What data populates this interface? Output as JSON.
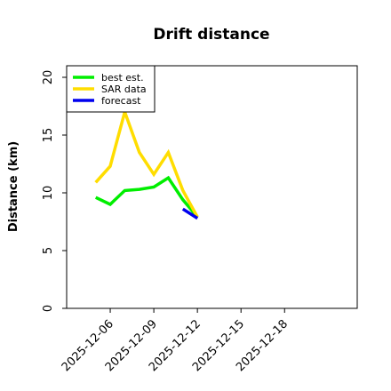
{
  "chart_data": {
    "type": "line",
    "title": "Drift distance",
    "xlabel": "",
    "ylabel": "Distance (km)",
    "ylim": [
      0,
      21
    ],
    "xlim": [
      "2025-12-03",
      "2025-12-23"
    ],
    "yticks": [
      "0",
      "5",
      "10",
      "15",
      "20"
    ],
    "xticks": [
      "2025-12-06",
      "2025-12-09",
      "2025-12-12",
      "2025-12-15",
      "2025-12-18"
    ],
    "grid": false,
    "legend_position": "top-left",
    "series": [
      {
        "name": "best est.",
        "color": "#00ee00",
        "x": [
          "2025-12-05",
          "2025-12-06",
          "2025-12-07",
          "2025-12-08",
          "2025-12-09",
          "2025-12-10",
          "2025-12-11",
          "2025-12-12"
        ],
        "y": [
          9.6,
          9.0,
          10.2,
          10.3,
          10.5,
          11.3,
          9.4,
          7.9
        ]
      },
      {
        "name": "SAR data",
        "color": "#ffdd00",
        "x": [
          "2025-12-05",
          "2025-12-06",
          "2025-12-07",
          "2025-12-08",
          "2025-12-09",
          "2025-12-10",
          "2025-12-11",
          "2025-12-12"
        ],
        "y": [
          10.9,
          12.3,
          17.0,
          13.5,
          11.6,
          13.5,
          10.2,
          7.9
        ]
      },
      {
        "name": "forecast",
        "color": "#0000ee",
        "x": [
          "2025-12-11",
          "2025-12-12"
        ],
        "y": [
          8.6,
          7.8
        ]
      }
    ]
  }
}
